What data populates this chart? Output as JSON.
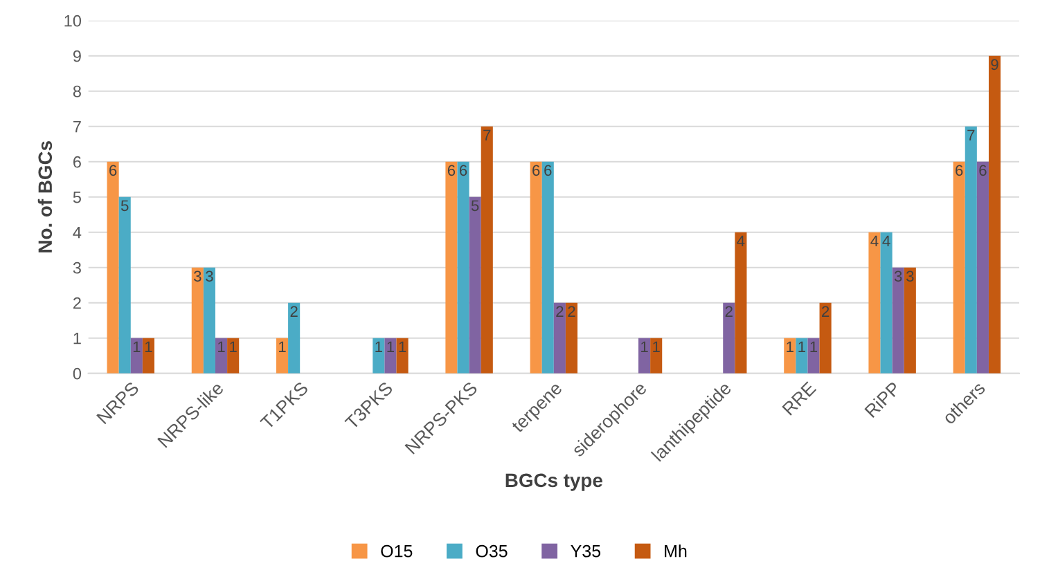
{
  "chart_data": {
    "type": "bar",
    "xlabel": "BGCs type",
    "ylabel": "No. of BGCs",
    "categories": [
      "NRPS",
      "NRPS-like",
      "T1PKS",
      "T3PKS",
      "NRPS-PKS",
      "terpene",
      "siderophore",
      "lanthipeptide",
      "RRE",
      "RiPP",
      "others"
    ],
    "series": [
      {
        "name": "O15",
        "color": "#f79646",
        "values": [
          6,
          3,
          1,
          0,
          6,
          6,
          0,
          0,
          1,
          4,
          6
        ],
        "value_labels": [
          "6",
          "3",
          "1",
          null,
          "6",
          "6",
          null,
          null,
          "1",
          "4",
          "6"
        ]
      },
      {
        "name": "O35",
        "color": "#4bacc6",
        "values": [
          5,
          3,
          2,
          1,
          6,
          6,
          0,
          0,
          1,
          4,
          7
        ],
        "value_labels": [
          "5",
          "3",
          "2",
          "1",
          "6",
          "6",
          null,
          null,
          "1",
          "4",
          "7"
        ]
      },
      {
        "name": "Y35",
        "color": "#8064a2",
        "values": [
          1,
          1,
          0,
          1,
          5,
          2,
          1,
          2,
          1,
          3,
          6
        ],
        "value_labels": [
          "1",
          "1",
          null,
          "1",
          "5",
          "2",
          "1",
          "2",
          "1",
          "3",
          "6"
        ]
      },
      {
        "name": "Mh",
        "color": "#c55a11",
        "values": [
          1,
          1,
          0,
          1,
          7,
          2,
          1,
          4,
          2,
          3,
          9
        ],
        "value_labels": [
          "1",
          "1",
          null,
          "1",
          "7",
          "2",
          "1",
          "4",
          "2",
          "3",
          "9"
        ]
      }
    ],
    "ylim": [
      0,
      10
    ],
    "yticks": [
      0,
      1,
      2,
      3,
      4,
      5,
      6,
      7,
      8,
      9,
      10
    ],
    "grid": "y",
    "legend": "bottom"
  }
}
